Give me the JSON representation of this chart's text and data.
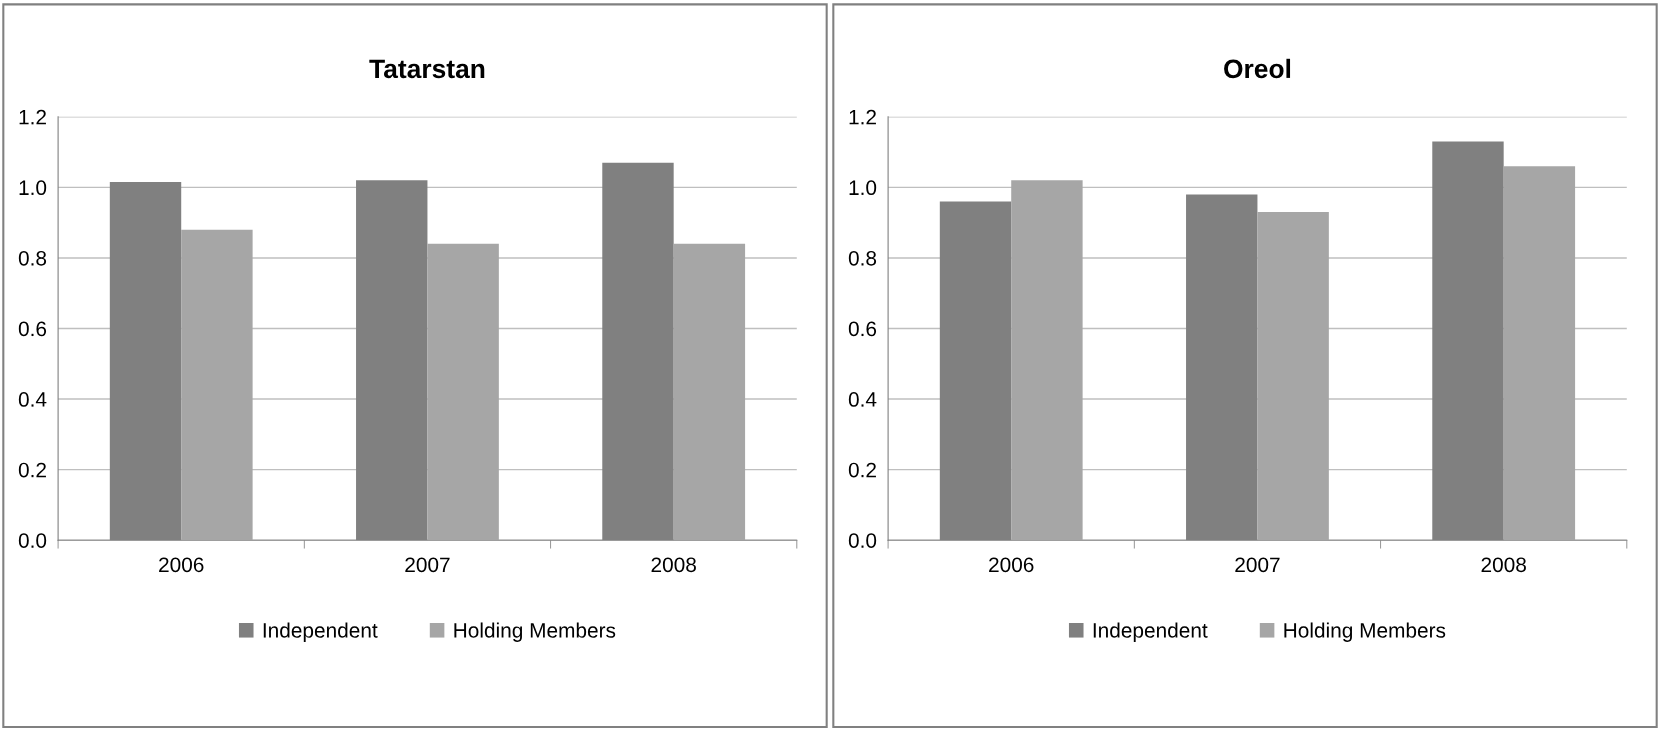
{
  "chart_data": [
    {
      "type": "bar",
      "title": "Tatarstan",
      "categories": [
        "2006",
        "2007",
        "2008"
      ],
      "series": [
        {
          "name": "Independent",
          "color": "#808080",
          "values": [
            1.015,
            1.02,
            1.07
          ]
        },
        {
          "name": "Holding Members",
          "color": "#a6a6a6",
          "values": [
            0.88,
            0.84,
            0.84
          ]
        }
      ],
      "ylim": [
        0,
        1.2
      ],
      "yticks": [
        {
          "value": 0,
          "label": "0.0"
        },
        {
          "value": 0.2,
          "label": "0.2"
        },
        {
          "value": 0.4,
          "label": "0.4"
        },
        {
          "value": 0.6,
          "label": "0.6"
        },
        {
          "value": 0.8,
          "label": "0.8"
        },
        {
          "value": 1.0,
          "label": "1.0"
        },
        {
          "value": 1.2,
          "label": "1.2"
        }
      ],
      "grid": "y",
      "legend": "bottom"
    },
    {
      "type": "bar",
      "title": "Oreol",
      "categories": [
        "2006",
        "2007",
        "2008"
      ],
      "series": [
        {
          "name": "Independent",
          "color": "#808080",
          "values": [
            0.96,
            0.98,
            1.13
          ]
        },
        {
          "name": "Holding Members",
          "color": "#a6a6a6",
          "values": [
            1.02,
            0.93,
            1.06
          ]
        }
      ],
      "ylim": [
        0,
        1.2
      ],
      "yticks": [
        {
          "value": 0,
          "label": "0.0"
        },
        {
          "value": 0.2,
          "label": "0.2"
        },
        {
          "value": 0.4,
          "label": "0.4"
        },
        {
          "value": 0.6,
          "label": "0.6"
        },
        {
          "value": 0.8,
          "label": "0.8"
        },
        {
          "value": 1.0,
          "label": "1.0"
        },
        {
          "value": 1.2,
          "label": "1.2"
        }
      ],
      "grid": "y",
      "legend": "bottom"
    }
  ]
}
